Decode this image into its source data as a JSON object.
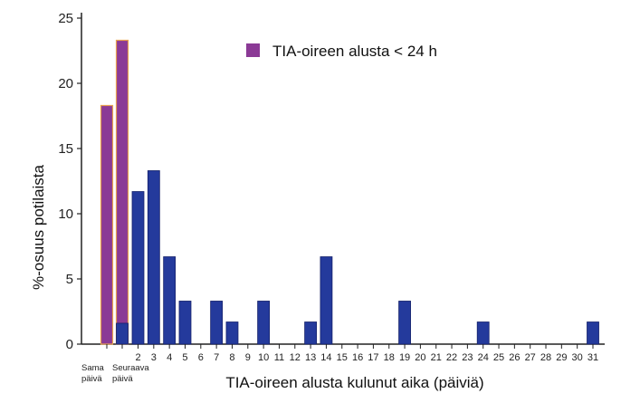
{
  "chart_data": {
    "type": "bar",
    "title": "",
    "xlabel": "TIA-oireen alusta kulunut aika (päiviä)",
    "ylabel": "%-osuus potilaista",
    "ylim": [
      0,
      25
    ],
    "yticks": [
      0,
      5,
      10,
      15,
      20,
      25
    ],
    "categories": [
      [
        "Sama",
        "päivä"
      ],
      [
        "Seuraava",
        "päivä"
      ],
      "2",
      "3",
      "4",
      "5",
      "6",
      "7",
      "8",
      "9",
      "10",
      "11",
      "12",
      "13",
      "14",
      "15",
      "16",
      "17",
      "18",
      "19",
      "20",
      "21",
      "22",
      "23",
      "24",
      "25",
      "26",
      "27",
      "28",
      "29",
      "30",
      "31"
    ],
    "legend": {
      "placement": "top-center",
      "label": "TIA-oireen alusta < 24 h",
      "color": "#8b3a96"
    },
    "series": [
      {
        "name": "TIA-oireen alusta < 24 h",
        "color": "#8b3a96",
        "values": [
          18.3,
          23.3,
          0,
          0,
          0,
          0,
          0,
          0,
          0,
          0,
          0,
          0,
          0,
          0,
          0,
          0,
          0,
          0,
          0,
          0,
          0,
          0,
          0,
          0,
          0,
          0,
          0,
          0,
          0,
          0,
          0,
          0
        ]
      },
      {
        "color": "#243a9c",
        "values": [
          0,
          1.6,
          11.7,
          13.3,
          6.7,
          3.3,
          0,
          3.3,
          1.7,
          0,
          3.3,
          0,
          0,
          1.7,
          6.7,
          0,
          0,
          0,
          0,
          3.3,
          0,
          0,
          0,
          0,
          1.7,
          0,
          0,
          0,
          0,
          0,
          0,
          1.7
        ]
      }
    ],
    "grid": false
  }
}
